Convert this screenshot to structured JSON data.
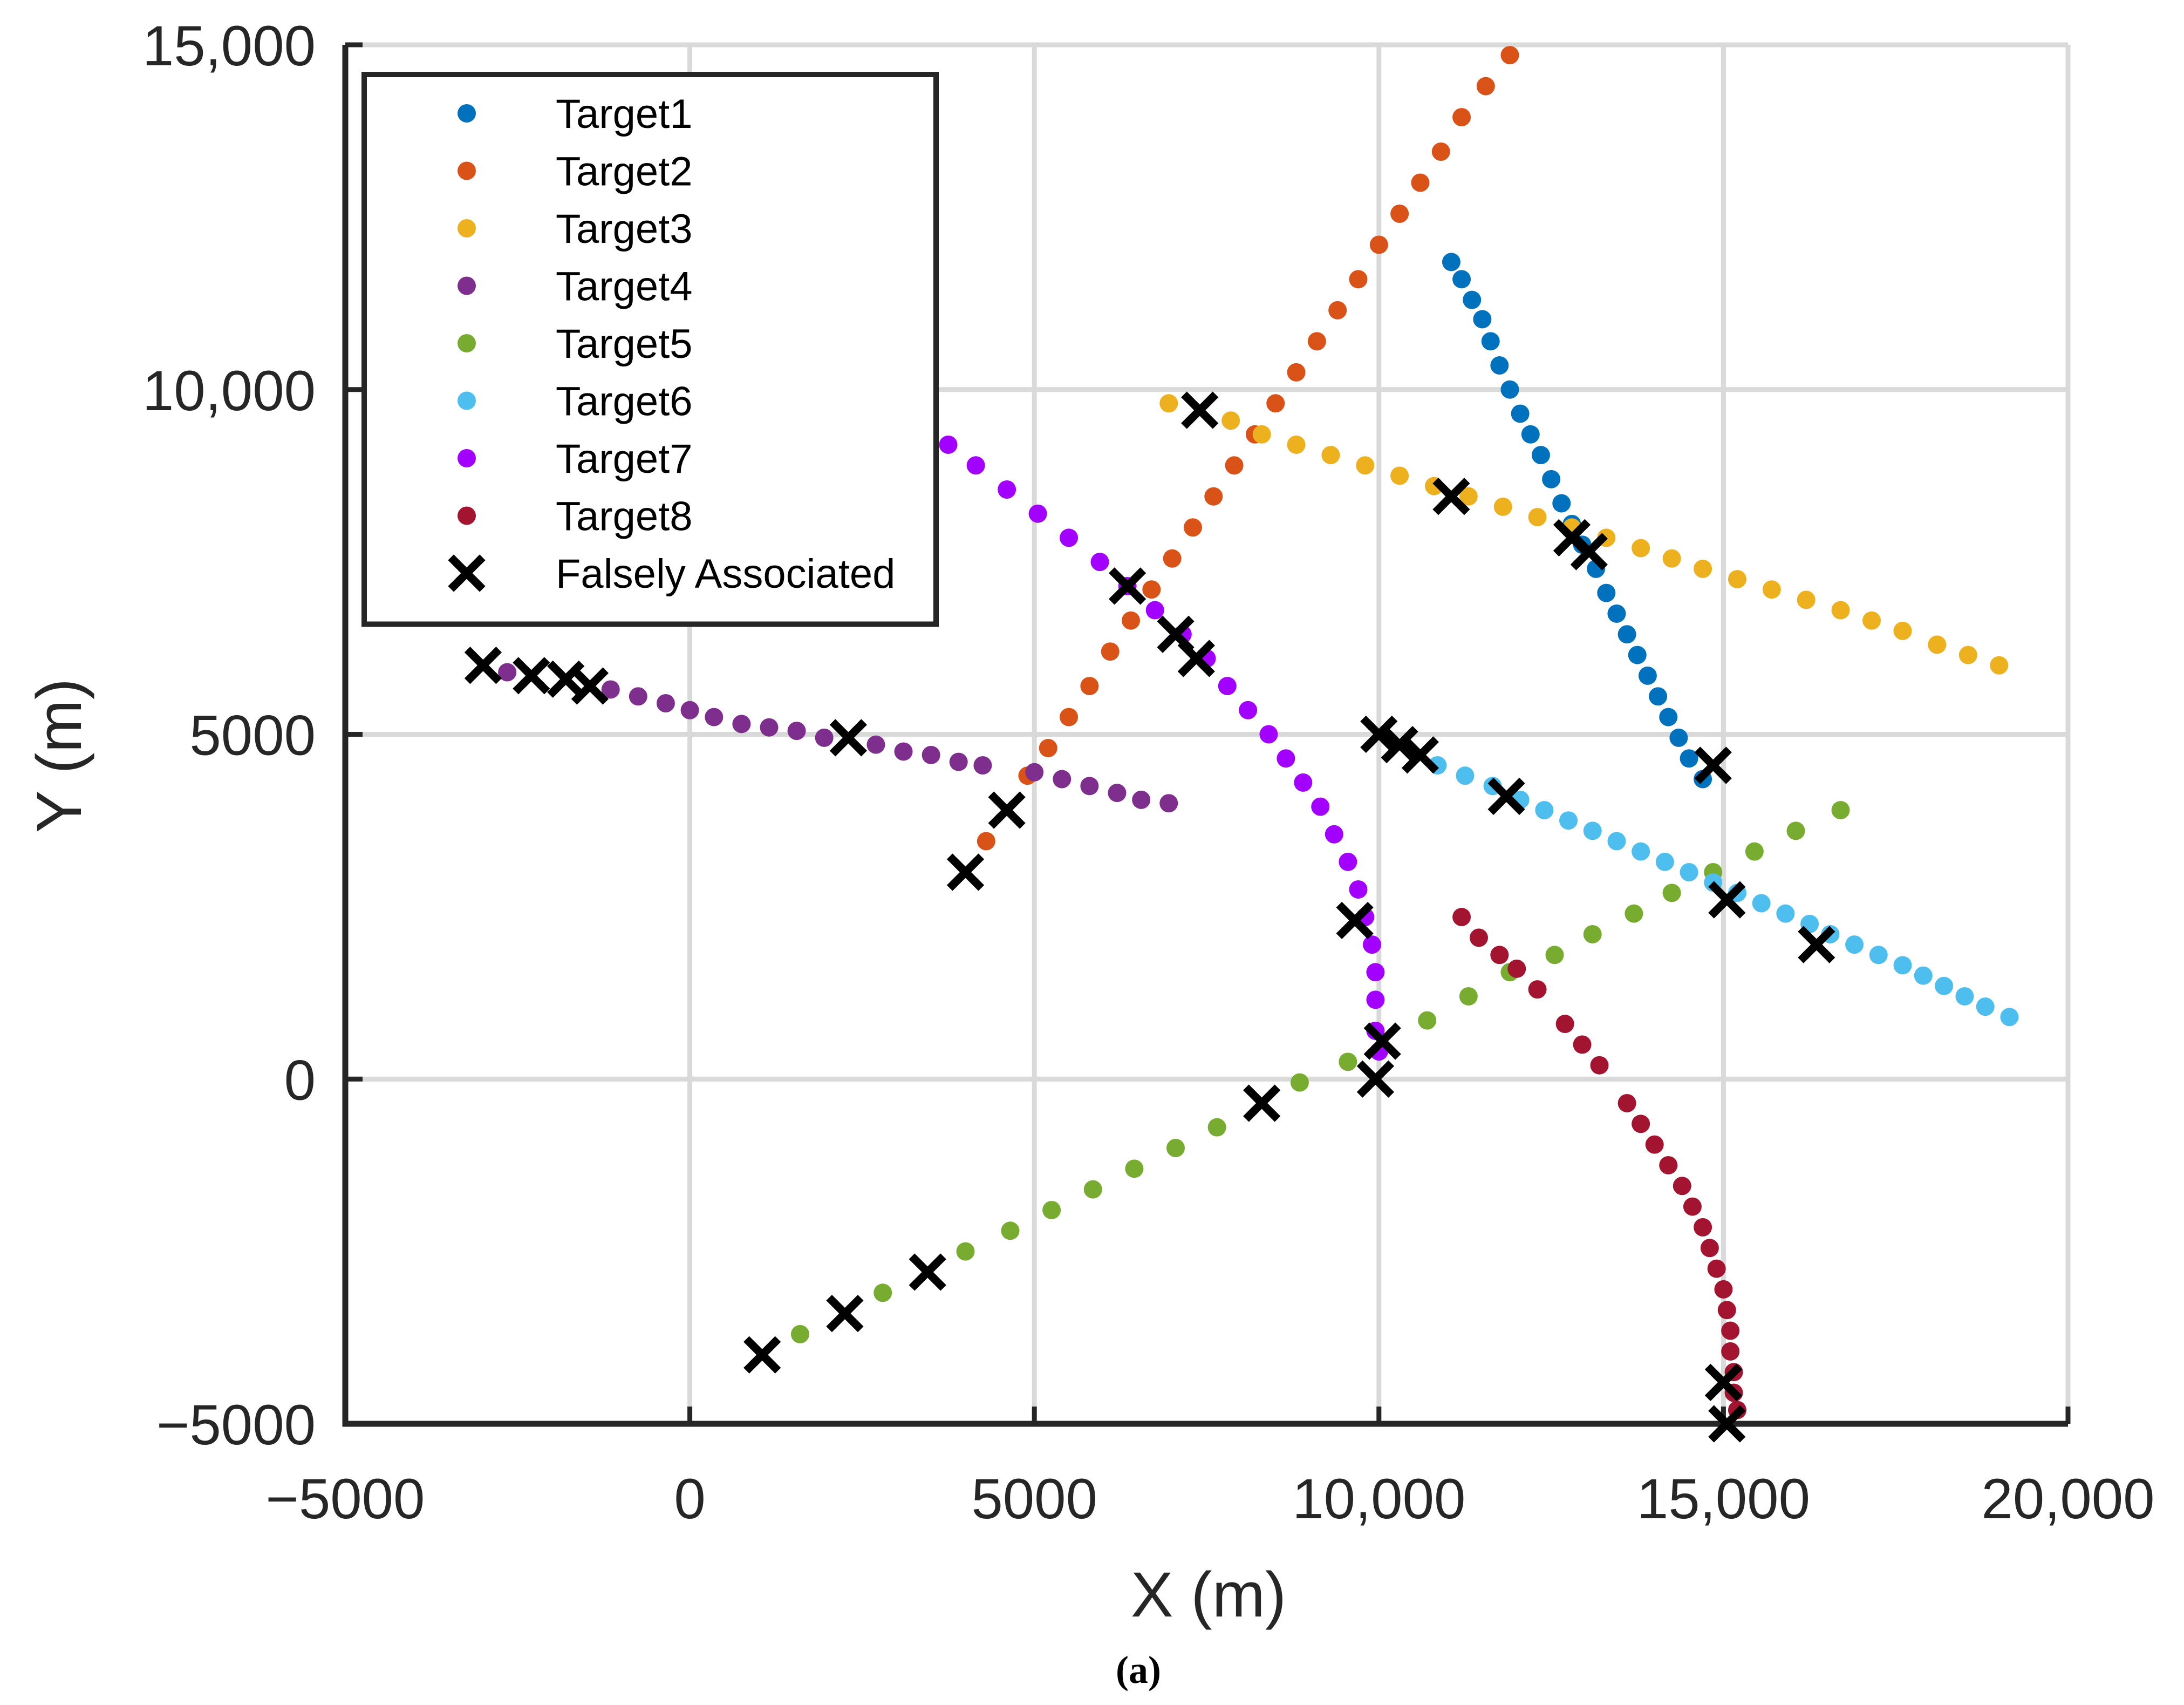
{
  "chart_data": {
    "type": "scatter",
    "xlabel": "X (m)",
    "ylabel": "Y (m)",
    "caption": "(a)",
    "xlim": [
      -5000,
      20000
    ],
    "ylim": [
      -5000,
      15000
    ],
    "grid": true,
    "legend_position": "top-left",
    "x_ticks": [
      {
        "value": -5000,
        "label": "−5000"
      },
      {
        "value": 0,
        "label": "0"
      },
      {
        "value": 5000,
        "label": "5000"
      },
      {
        "value": 10000,
        "label": "10,000"
      },
      {
        "value": 15000,
        "label": "15,000"
      },
      {
        "value": 20000,
        "label": "20,000"
      }
    ],
    "y_ticks": [
      {
        "value": -5000,
        "label": "−5000"
      },
      {
        "value": 0,
        "label": "0"
      },
      {
        "value": 5000,
        "label": "5000"
      },
      {
        "value": 10000,
        "label": "10,000"
      },
      {
        "value": 15000,
        "label": "15,000"
      }
    ],
    "series": [
      {
        "name": "Target1",
        "color": "#0072BD",
        "marker": "dot",
        "points": [
          [
            11050,
            11850
          ],
          [
            11200,
            11600
          ],
          [
            11350,
            11300
          ],
          [
            11500,
            11020
          ],
          [
            11620,
            10700
          ],
          [
            11750,
            10350
          ],
          [
            11900,
            10000
          ],
          [
            12050,
            9650
          ],
          [
            12200,
            9350
          ],
          [
            12350,
            9050
          ],
          [
            12500,
            8700
          ],
          [
            12650,
            8350
          ],
          [
            12800,
            8050
          ],
          [
            12950,
            7750
          ],
          [
            13150,
            7400
          ],
          [
            13300,
            7050
          ],
          [
            13450,
            6750
          ],
          [
            13600,
            6450
          ],
          [
            13750,
            6150
          ],
          [
            13900,
            5850
          ],
          [
            14050,
            5550
          ],
          [
            14200,
            5250
          ],
          [
            14350,
            4950
          ],
          [
            14500,
            4650
          ],
          [
            14700,
            4350
          ]
        ]
      },
      {
        "name": "Target2",
        "color": "#D95319",
        "marker": "dot",
        "points": [
          [
            4300,
            3450
          ],
          [
            4900,
            4400
          ],
          [
            5200,
            4800
          ],
          [
            5500,
            5250
          ],
          [
            5800,
            5700
          ],
          [
            6100,
            6200
          ],
          [
            6400,
            6650
          ],
          [
            6700,
            7100
          ],
          [
            7000,
            7550
          ],
          [
            7300,
            8000
          ],
          [
            7600,
            8450
          ],
          [
            7900,
            8900
          ],
          [
            8200,
            9350
          ],
          [
            8500,
            9800
          ],
          [
            8800,
            10250
          ],
          [
            9100,
            10700
          ],
          [
            9400,
            11150
          ],
          [
            9700,
            11600
          ],
          [
            10000,
            12100
          ],
          [
            10300,
            12550
          ],
          [
            10600,
            13000
          ],
          [
            10900,
            13450
          ],
          [
            11200,
            13950
          ],
          [
            11550,
            14400
          ],
          [
            11900,
            14850
          ]
        ]
      },
      {
        "name": "Target3",
        "color": "#EDB120",
        "marker": "dot",
        "points": [
          [
            6950,
            9800
          ],
          [
            7850,
            9550
          ],
          [
            8300,
            9350
          ],
          [
            8800,
            9200
          ],
          [
            9300,
            9050
          ],
          [
            9800,
            8900
          ],
          [
            10300,
            8750
          ],
          [
            10800,
            8600
          ],
          [
            11300,
            8450
          ],
          [
            11800,
            8300
          ],
          [
            12300,
            8150
          ],
          [
            12800,
            8000
          ],
          [
            13300,
            7850
          ],
          [
            13800,
            7700
          ],
          [
            14250,
            7550
          ],
          [
            14700,
            7400
          ],
          [
            15200,
            7250
          ],
          [
            15700,
            7100
          ],
          [
            16200,
            6950
          ],
          [
            16700,
            6800
          ],
          [
            17150,
            6650
          ],
          [
            17600,
            6500
          ],
          [
            18100,
            6300
          ],
          [
            18550,
            6150
          ],
          [
            19000,
            6000
          ]
        ]
      },
      {
        "name": "Target4",
        "color": "#7E2F8E",
        "marker": "dot",
        "points": [
          [
            -2650,
            5900
          ],
          [
            -1150,
            5650
          ],
          [
            -750,
            5550
          ],
          [
            -350,
            5450
          ],
          [
            0,
            5350
          ],
          [
            350,
            5250
          ],
          [
            750,
            5150
          ],
          [
            1150,
            5100
          ],
          [
            1550,
            5050
          ],
          [
            1950,
            4950
          ],
          [
            2700,
            4850
          ],
          [
            3100,
            4750
          ],
          [
            3500,
            4700
          ],
          [
            3900,
            4600
          ],
          [
            4250,
            4550
          ],
          [
            5000,
            4450
          ],
          [
            5400,
            4350
          ],
          [
            5800,
            4250
          ],
          [
            6200,
            4150
          ],
          [
            6550,
            4050
          ],
          [
            6950,
            4000
          ]
        ]
      },
      {
        "name": "Target5",
        "color": "#77AC30",
        "marker": "dot",
        "points": [
          [
            1600,
            -3700
          ],
          [
            2800,
            -3100
          ],
          [
            4000,
            -2500
          ],
          [
            4650,
            -2200
          ],
          [
            5250,
            -1900
          ],
          [
            5850,
            -1600
          ],
          [
            6450,
            -1300
          ],
          [
            7050,
            -1000
          ],
          [
            7650,
            -700
          ],
          [
            8850,
            -50
          ],
          [
            9550,
            250
          ],
          [
            10700,
            850
          ],
          [
            11300,
            1200
          ],
          [
            11900,
            1550
          ],
          [
            12550,
            1800
          ],
          [
            13100,
            2100
          ],
          [
            13700,
            2400
          ],
          [
            14250,
            2700
          ],
          [
            14850,
            3000
          ],
          [
            15450,
            3300
          ],
          [
            16050,
            3600
          ],
          [
            16700,
            3900
          ]
        ]
      },
      {
        "name": "Target6",
        "color": "#4DBEEE",
        "marker": "dot",
        "points": [
          [
            10850,
            4550
          ],
          [
            11250,
            4400
          ],
          [
            11650,
            4250
          ],
          [
            12050,
            4050
          ],
          [
            12400,
            3900
          ],
          [
            12750,
            3750
          ],
          [
            13100,
            3600
          ],
          [
            13450,
            3450
          ],
          [
            13800,
            3300
          ],
          [
            14150,
            3150
          ],
          [
            14500,
            3000
          ],
          [
            14850,
            2850
          ],
          [
            15200,
            2700
          ],
          [
            15550,
            2550
          ],
          [
            15900,
            2400
          ],
          [
            16250,
            2250
          ],
          [
            16550,
            2100
          ],
          [
            16900,
            1950
          ],
          [
            17250,
            1800
          ],
          [
            17600,
            1650
          ],
          [
            17900,
            1500
          ],
          [
            18200,
            1350
          ],
          [
            18500,
            1200
          ],
          [
            18800,
            1050
          ],
          [
            19150,
            900
          ]
        ]
      },
      {
        "name": "Target7",
        "color": "#A200FF",
        "marker": "dot",
        "points": [
          [
            3750,
            9200
          ],
          [
            4150,
            8900
          ],
          [
            4600,
            8550
          ],
          [
            5050,
            8200
          ],
          [
            5500,
            7850
          ],
          [
            5950,
            7500
          ],
          [
            6350,
            7150
          ],
          [
            6750,
            6800
          ],
          [
            7150,
            6450
          ],
          [
            7500,
            6100
          ],
          [
            7800,
            5700
          ],
          [
            8100,
            5350
          ],
          [
            8400,
            5000
          ],
          [
            8650,
            4650
          ],
          [
            8900,
            4300
          ],
          [
            9150,
            3950
          ],
          [
            9350,
            3550
          ],
          [
            9550,
            3150
          ],
          [
            9700,
            2750
          ],
          [
            9800,
            2350
          ],
          [
            9900,
            1950
          ],
          [
            9950,
            1550
          ],
          [
            9950,
            1150
          ],
          [
            9950,
            700
          ],
          [
            10000,
            400
          ]
        ]
      },
      {
        "name": "Target8",
        "color": "#A2142F",
        "marker": "dot",
        "points": [
          [
            11200,
            2350
          ],
          [
            11450,
            2050
          ],
          [
            11750,
            1800
          ],
          [
            12000,
            1600
          ],
          [
            12300,
            1300
          ],
          [
            12700,
            800
          ],
          [
            12950,
            500
          ],
          [
            13200,
            200
          ],
          [
            13600,
            -350
          ],
          [
            13800,
            -650
          ],
          [
            14000,
            -950
          ],
          [
            14200,
            -1250
          ],
          [
            14400,
            -1550
          ],
          [
            14550,
            -1850
          ],
          [
            14700,
            -2150
          ],
          [
            14800,
            -2450
          ],
          [
            14900,
            -2750
          ],
          [
            15000,
            -3050
          ],
          [
            15050,
            -3350
          ],
          [
            15100,
            -3650
          ],
          [
            15100,
            -3950
          ],
          [
            15150,
            -4250
          ],
          [
            15150,
            -4550
          ],
          [
            15200,
            -4800
          ]
        ]
      },
      {
        "name": "Falsely Associated",
        "color": "#000000",
        "marker": "x",
        "points": [
          [
            -3000,
            6000
          ],
          [
            -2300,
            5850
          ],
          [
            -1800,
            5800
          ],
          [
            -1450,
            5700
          ],
          [
            2300,
            4950
          ],
          [
            4000,
            3000
          ],
          [
            4600,
            3900
          ],
          [
            6350,
            7150
          ],
          [
            7050,
            6450
          ],
          [
            7350,
            6100
          ],
          [
            7400,
            9700
          ],
          [
            8300,
            -350
          ],
          [
            9650,
            2300
          ],
          [
            9950,
            0
          ],
          [
            10050,
            550
          ],
          [
            10000,
            5000
          ],
          [
            10300,
            4850
          ],
          [
            10600,
            4700
          ],
          [
            11050,
            8450
          ],
          [
            11850,
            4100
          ],
          [
            12800,
            7850
          ],
          [
            13050,
            7650
          ],
          [
            14850,
            4550
          ],
          [
            15050,
            2600
          ],
          [
            16350,
            1950
          ],
          [
            15000,
            -4400
          ],
          [
            15050,
            -5000
          ],
          [
            1050,
            -4000
          ],
          [
            2250,
            -3400
          ],
          [
            3450,
            -2800
          ]
        ]
      }
    ]
  }
}
